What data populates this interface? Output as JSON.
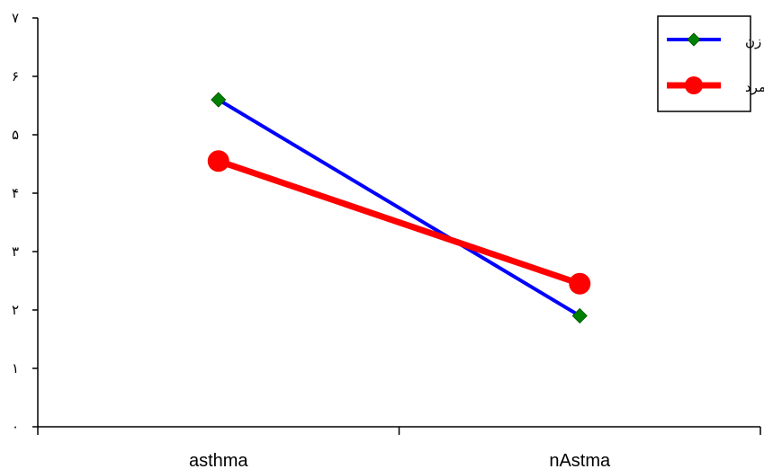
{
  "chart_data": {
    "type": "line",
    "categories": [
      "asthma",
      "nAstma"
    ],
    "series": [
      {
        "name": "زن",
        "values": [
          5.6,
          1.9
        ],
        "color": "#0000ff",
        "marker": "diamond",
        "marker_color": "#008000"
      },
      {
        "name": "مرد",
        "values": [
          4.55,
          2.45
        ],
        "color": "#ff0000",
        "marker": "circle",
        "marker_color": "#ff0000"
      }
    ],
    "y_ticks": [
      "۰",
      "۱",
      "۲",
      "۳",
      "۴",
      "۵",
      "۶",
      "۷"
    ],
    "ylim": [
      0,
      7
    ],
    "grid": false,
    "legend_position": "top-right",
    "title": "",
    "xlabel": "",
    "ylabel": ""
  }
}
